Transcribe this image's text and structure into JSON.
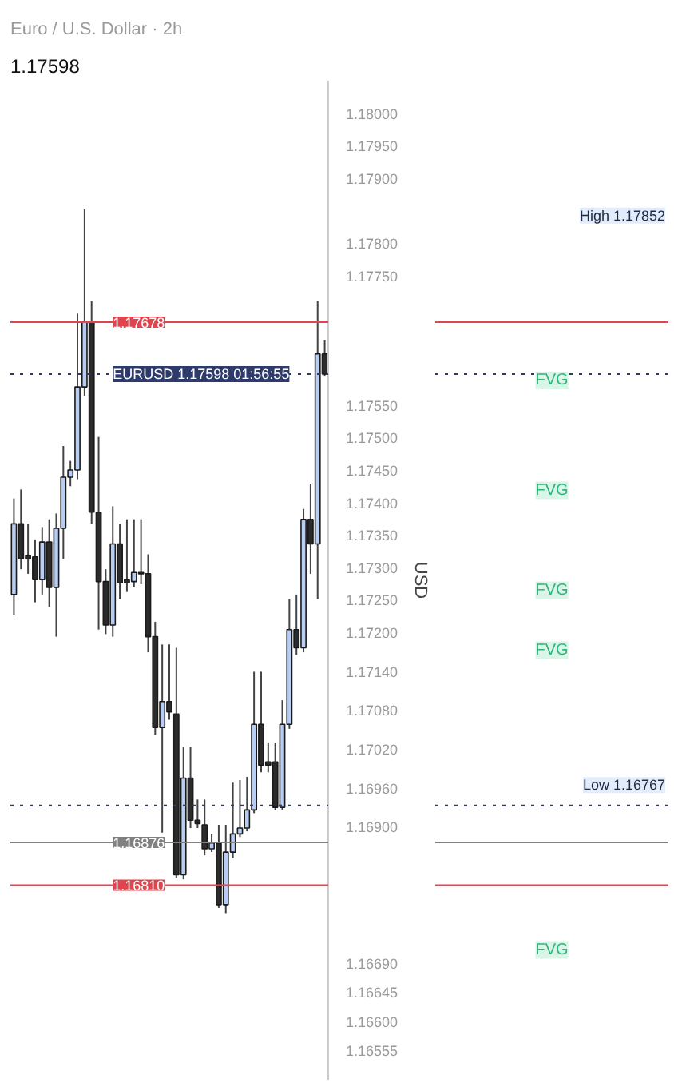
{
  "chart_data": {
    "type": "candlestick",
    "title": "Euro / U.S. Dollar · 2h",
    "subtitle": "1.17598",
    "ylabel": "USD",
    "categories": [
      null,
      null,
      null,
      null,
      null,
      null,
      null,
      null,
      null,
      null,
      null,
      null,
      null,
      null,
      null,
      null,
      null,
      null,
      null,
      null,
      null,
      null,
      null,
      null,
      null,
      null,
      null,
      null,
      null,
      null,
      null,
      null,
      null,
      null,
      null,
      null,
      null,
      null,
      null,
      null,
      null,
      null,
      null,
      null,
      null
    ],
    "ohlc": [
      [
        1.17258,
        1.17406,
        1.17227,
        1.17367
      ],
      [
        1.17367,
        1.1742,
        1.17297,
        1.17313
      ],
      [
        1.17318,
        1.17367,
        1.1729,
        1.17313
      ],
      [
        1.17316,
        1.17343,
        1.17246,
        1.17281
      ],
      [
        1.17281,
        1.17362,
        1.17258,
        1.17339
      ],
      [
        1.17339,
        1.17374,
        1.17239,
        1.17269
      ],
      [
        1.17269,
        1.17383,
        1.17193,
        1.1736
      ],
      [
        1.1736,
        1.17487,
        1.17313,
        1.17439
      ],
      [
        1.17439,
        1.17464,
        1.17425,
        1.1745
      ],
      [
        1.1745,
        1.17691,
        1.17436,
        1.17578
      ],
      [
        1.17578,
        1.17852,
        1.17564,
        1.17678
      ],
      [
        1.17678,
        1.1771,
        1.17367,
        1.17385
      ],
      [
        1.17385,
        1.17501,
        1.17204,
        1.17278
      ],
      [
        1.17278,
        1.17297,
        1.17197,
        1.17211
      ],
      [
        1.17211,
        1.17394,
        1.17193,
        1.17336
      ],
      [
        1.17336,
        1.17367,
        1.17251,
        1.17276
      ],
      [
        1.17281,
        1.17374,
        1.17262,
        1.17276
      ],
      [
        1.17278,
        1.17374,
        1.17269,
        1.17292
      ],
      [
        1.17292,
        1.17374,
        1.17274,
        1.1729
      ],
      [
        1.1729,
        1.1732,
        1.17169,
        1.17193
      ],
      [
        1.17193,
        1.17216,
        1.17042,
        1.17053
      ],
      [
        1.17053,
        1.17181,
        1.16891,
        1.17093
      ],
      [
        1.17093,
        1.17181,
        1.17065,
        1.17077
      ],
      [
        1.17074,
        1.17176,
        1.16821,
        1.16826
      ],
      [
        1.16826,
        1.17023,
        1.16819,
        1.16975
      ],
      [
        1.16975,
        1.17023,
        1.16898,
        1.1691
      ],
      [
        1.1691,
        1.16942,
        1.16898,
        1.16905
      ],
      [
        1.16903,
        1.16942,
        1.16856,
        1.16866
      ],
      [
        1.16866,
        1.16889,
        1.16861,
        1.16875
      ],
      [
        1.16875,
        1.16903,
        1.16775,
        1.1678
      ],
      [
        1.1678,
        1.16903,
        1.16767,
        1.16861
      ],
      [
        1.16861,
        1.16968,
        1.16852,
        1.16889
      ],
      [
        1.16889,
        1.16972,
        1.16884,
        1.16898
      ],
      [
        1.16898,
        1.16977,
        1.16893,
        1.16926
      ],
      [
        1.16926,
        1.17139,
        1.16921,
        1.17058
      ],
      [
        1.17058,
        1.17139,
        1.16984,
        1.16995
      ],
      [
        1.16995,
        1.1703,
        1.16984,
        1.17
      ],
      [
        1.17,
        1.1703,
        1.16926,
        1.1693
      ],
      [
        1.1693,
        1.17095,
        1.16926,
        1.17058
      ],
      [
        1.17058,
        1.17251,
        1.17051,
        1.17204
      ],
      [
        1.17204,
        1.17258,
        1.17165,
        1.17176
      ],
      [
        1.17176,
        1.1739,
        1.17169,
        1.17374
      ],
      [
        1.17374,
        1.17429,
        1.1729,
        1.17336
      ],
      [
        1.17336,
        1.1771,
        1.17251,
        1.17629
      ],
      [
        1.17629,
        1.1765,
        1.17594,
        1.17598
      ]
    ],
    "colors": [
      "#b7cdf4",
      "#2b2b2b",
      "#2b2b2b",
      "#2b2b2b",
      "#b7cdf4",
      "#2b2b2b",
      "#b7cdf4",
      "#b7cdf4",
      "#b7cdf4",
      "#b7cdf4",
      "#b7cdf4",
      "#2b2b2b",
      "#2b2b2b",
      "#2b2b2b",
      "#b7cdf4",
      "#2b2b2b",
      "#2b2b2b",
      "#b7cdf4",
      "#2b2b2b",
      "#2b2b2b",
      "#2b2b2b",
      "#b7cdf4",
      "#2b2b2b",
      "#2b2b2b",
      "#b7cdf4",
      "#2b2b2b",
      "#2b2b2b",
      "#2b2b2b",
      "#b7cdf4",
      "#2b2b2b",
      "#b7cdf4",
      "#b7cdf4",
      "#b7cdf4",
      "#b7cdf4",
      "#b7cdf4",
      "#2b2b2b",
      "#2b2b2b",
      "#2b2b2b",
      "#b7cdf4",
      "#b7cdf4",
      "#2b2b2b",
      "#b7cdf4",
      "#2b2b2b",
      "#b7cdf4",
      "#2b2b2b"
    ],
    "ylim": [
      1.1651,
      1.1805
    ],
    "yticks": [
      {
        "value": 1.18,
        "label": "1.18000"
      },
      {
        "value": 1.1795,
        "label": "1.17950"
      },
      {
        "value": 1.179,
        "label": "1.17900"
      },
      {
        "value": 1.178,
        "label": "1.17800"
      },
      {
        "value": 1.1775,
        "label": "1.17750"
      },
      {
        "value": 1.1755,
        "label": "1.17550"
      },
      {
        "value": 1.175,
        "label": "1.17500"
      },
      {
        "value": 1.1745,
        "label": "1.17450"
      },
      {
        "value": 1.174,
        "label": "1.17400"
      },
      {
        "value": 1.1735,
        "label": "1.17350"
      },
      {
        "value": 1.173,
        "label": "1.17300"
      },
      {
        "value": 1.1725,
        "label": "1.17250"
      },
      {
        "value": 1.172,
        "label": "1.17200"
      },
      {
        "value": 1.1714,
        "label": "1.17140"
      },
      {
        "value": 1.1708,
        "label": "1.17080"
      },
      {
        "value": 1.1702,
        "label": "1.17020"
      },
      {
        "value": 1.1696,
        "label": "1.16960"
      },
      {
        "value": 1.169,
        "label": "1.16900"
      },
      {
        "value": 1.1669,
        "label": "1.16690"
      },
      {
        "value": 1.16645,
        "label": "1.16645"
      },
      {
        "value": 1.166,
        "label": "1.16600"
      },
      {
        "value": 1.16555,
        "label": "1.16555"
      }
    ],
    "ref_lines": [
      {
        "axis": "y",
        "value": 1.17678,
        "label": "1.17678",
        "color": "#e0454f",
        "line_style": "solid"
      },
      {
        "axis": "y",
        "value": 1.17598,
        "label": "EURUSD 1.17598 01:56:55",
        "color": "#2d3a6b",
        "line_style": "dotted"
      },
      {
        "axis": "y",
        "value": 1.16933,
        "label": null,
        "color": "#2d3a6b",
        "line_style": "dotted"
      },
      {
        "axis": "y",
        "value": 1.16876,
        "label": "1.16876",
        "color": "#808080",
        "line_style": "solid"
      },
      {
        "axis": "y",
        "value": 1.1681,
        "label": "1.16810",
        "color": "#e0454f",
        "line_style": "solid"
      }
    ],
    "annotations": [
      "High 1.17852",
      "Low 1.16767",
      "FVG",
      "FVG",
      "FVG",
      "FVG",
      "FVG"
    ],
    "grid": false
  }
}
